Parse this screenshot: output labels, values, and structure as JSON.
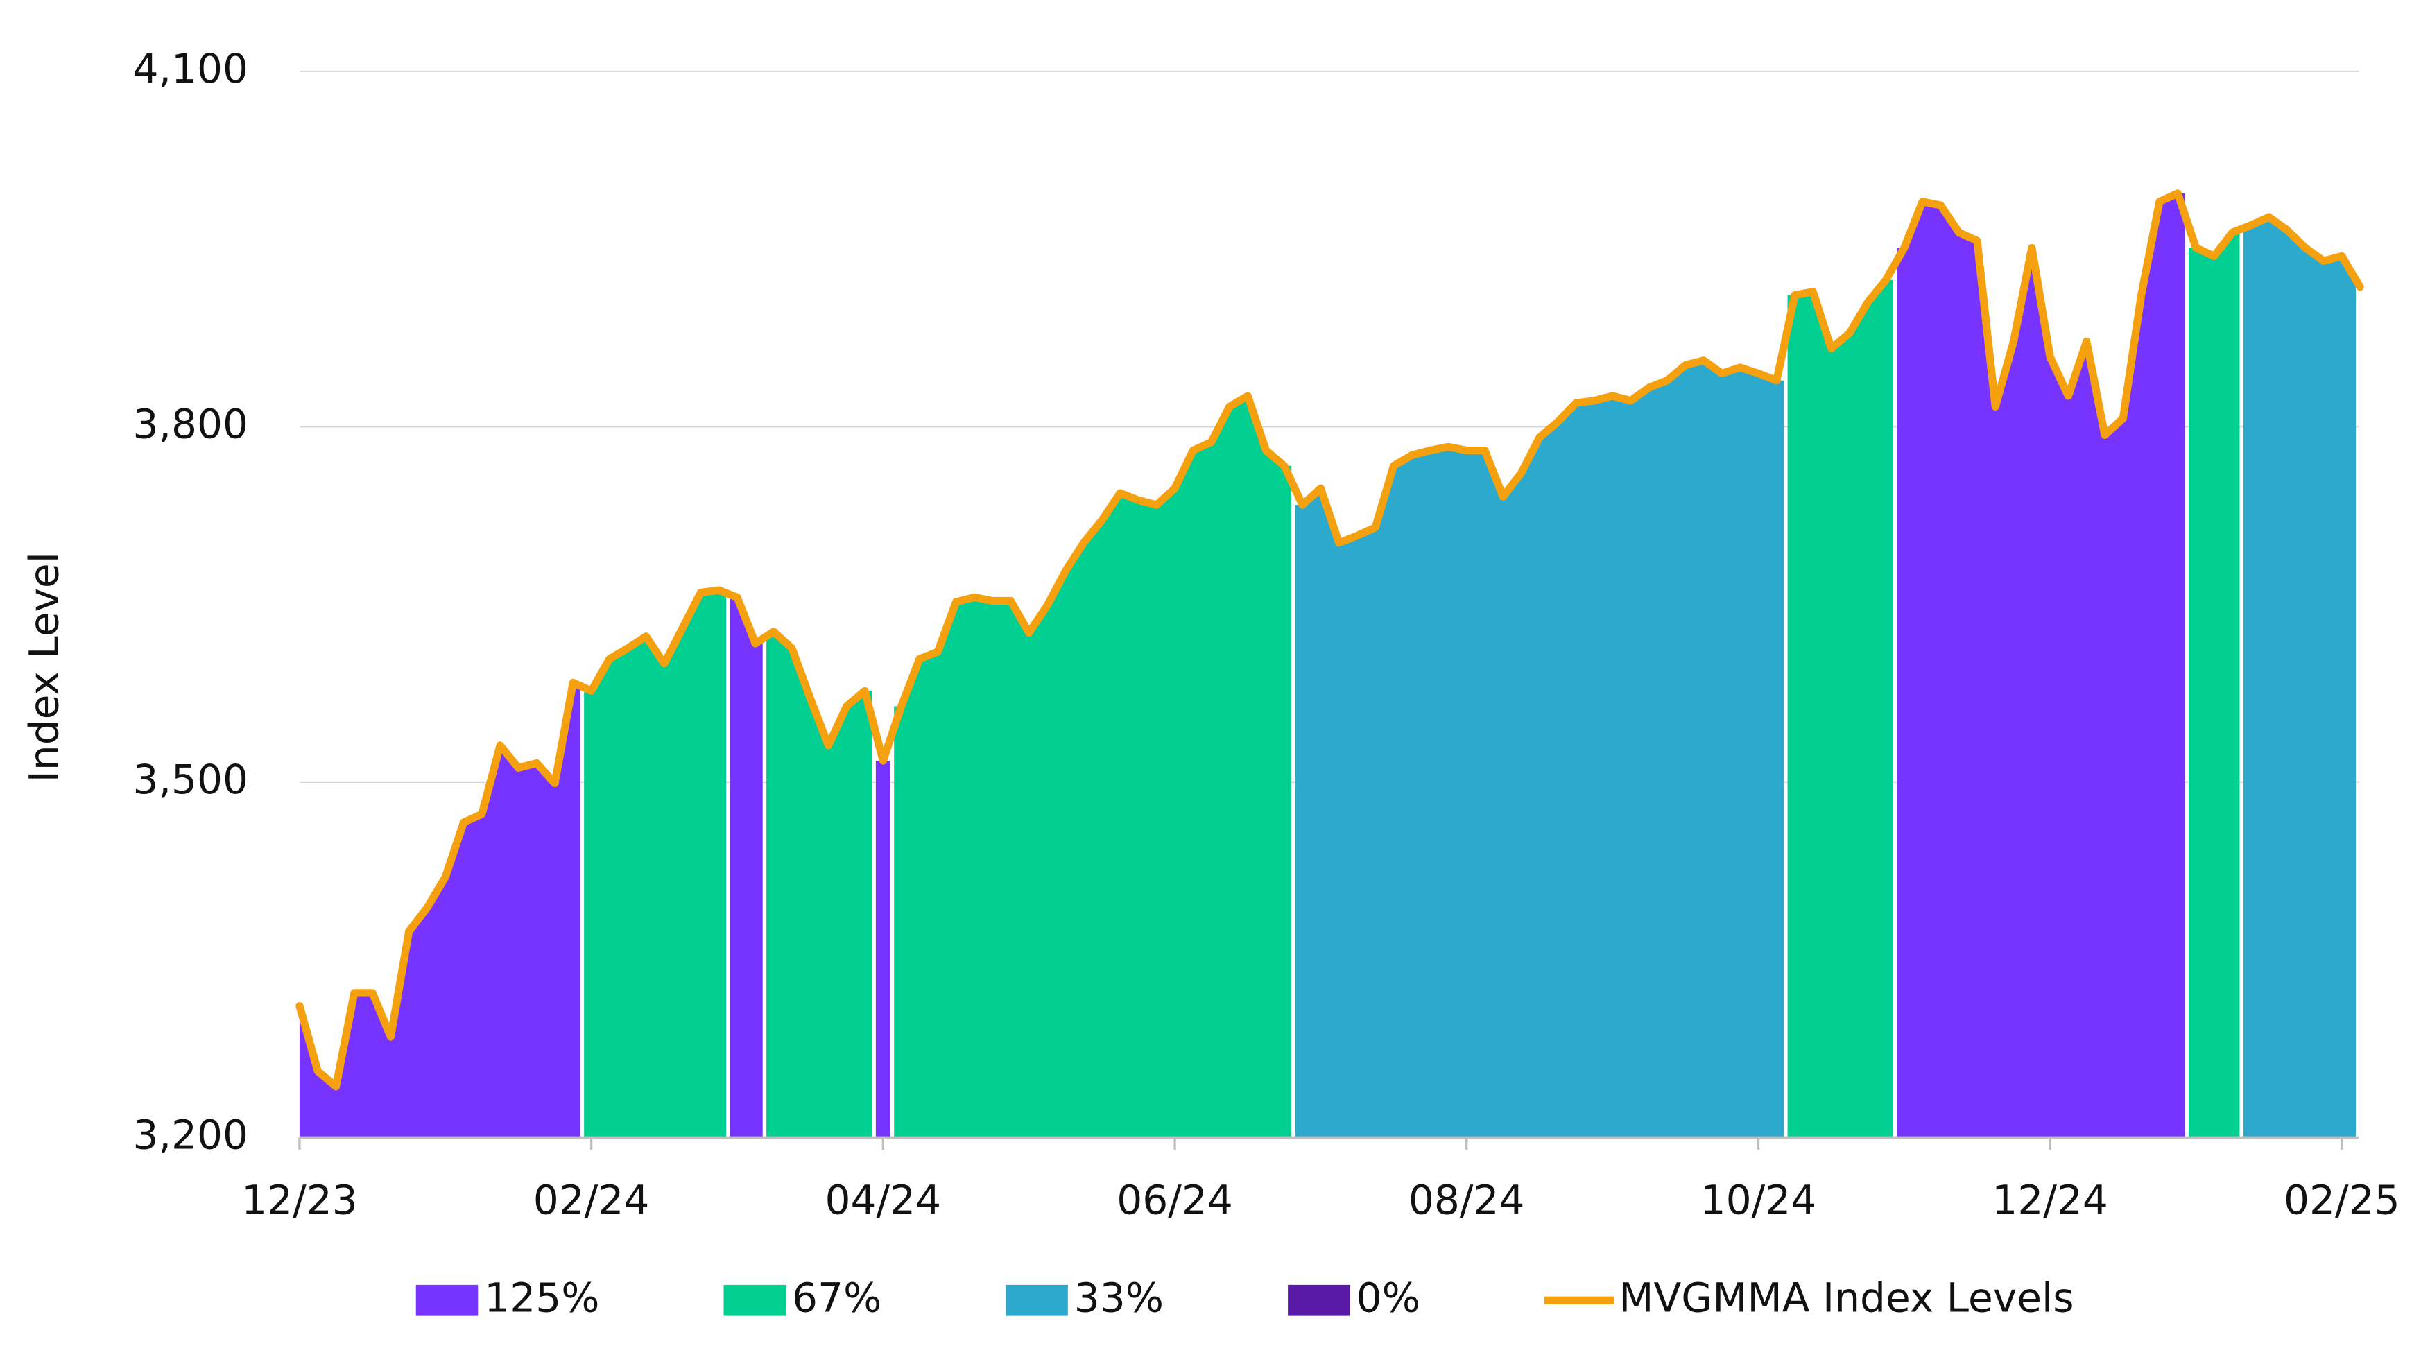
{
  "chart_data": {
    "type": "area",
    "y_label": "Index Level",
    "categories": [
      "12/23",
      null,
      null,
      null,
      null,
      null,
      null,
      null,
      null,
      null,
      null,
      null,
      null,
      null,
      null,
      null,
      "02/24",
      null,
      null,
      null,
      null,
      null,
      null,
      null,
      null,
      null,
      null,
      null,
      null,
      null,
      null,
      null,
      "04/24",
      null,
      null,
      null,
      null,
      null,
      null,
      null,
      null,
      null,
      null,
      null,
      null,
      null,
      null,
      null,
      "06/24",
      null,
      null,
      null,
      null,
      null,
      null,
      null,
      null,
      null,
      null,
      null,
      null,
      null,
      null,
      null,
      "08/24",
      null,
      null,
      null,
      null,
      null,
      null,
      null,
      null,
      null,
      null,
      null,
      null,
      null,
      null,
      null,
      "10/24",
      null,
      null,
      null,
      null,
      null,
      null,
      null,
      null,
      null,
      null,
      null,
      null,
      null,
      null,
      null,
      "12/24",
      null,
      null,
      null,
      null,
      null,
      null,
      null,
      null,
      null,
      null,
      null,
      null,
      null,
      null,
      null,
      "02/25",
      null
    ],
    "ylim": [
      3200,
      4100
    ],
    "yticks": [
      {
        "value": 3200,
        "label": "3,200"
      },
      {
        "value": 3500,
        "label": "3,500"
      },
      {
        "value": 3800,
        "label": "3,800"
      },
      {
        "value": 4100,
        "label": "4,100"
      }
    ],
    "grid": true,
    "legend": "bottom",
    "series": [
      {
        "name": "125%",
        "color": "#7733ff",
        "type": "area",
        "values": [
          3311,
          3256,
          3243,
          3322,
          3322,
          3285,
          3374,
          3394,
          3420,
          3466,
          3473,
          3531,
          3512,
          3516,
          3499,
          3584,
          null,
          null,
          null,
          null,
          null,
          null,
          null,
          null,
          3656,
          3617,
          null,
          null,
          null,
          null,
          null,
          null,
          3518,
          null,
          null,
          null,
          null,
          null,
          null,
          null,
          null,
          null,
          null,
          null,
          null,
          null,
          null,
          null,
          null,
          null,
          null,
          null,
          null,
          null,
          null,
          null,
          null,
          null,
          null,
          null,
          null,
          null,
          null,
          null,
          null,
          null,
          null,
          null,
          null,
          null,
          null,
          null,
          null,
          null,
          null,
          null,
          null,
          null,
          null,
          null,
          null,
          null,
          null,
          null,
          null,
          null,
          null,
          null,
          3951,
          3990,
          3987,
          3964,
          3957,
          3817,
          3872,
          3951,
          3859,
          3826,
          3872,
          3793,
          3807,
          3911,
          3990,
          3997,
          null,
          null,
          null,
          null,
          null,
          null,
          null,
          null,
          null,
          null
        ]
      },
      {
        "name": "67%",
        "color": "#00cf91",
        "type": "area",
        "values": [
          null,
          null,
          null,
          null,
          null,
          null,
          null,
          null,
          null,
          null,
          null,
          null,
          null,
          null,
          null,
          null,
          3577,
          3604,
          3613,
          3623,
          3600,
          3630,
          3660,
          3662,
          null,
          null,
          3627,
          3613,
          3571,
          3531,
          3564,
          3577,
          null,
          3564,
          3604,
          3610,
          3652,
          3656,
          3653,
          3653,
          3626,
          3649,
          3678,
          3702,
          3721,
          3744,
          3738,
          3734,
          3748,
          3780,
          3787,
          3817,
          3826,
          3780,
          3767,
          null,
          null,
          null,
          null,
          null,
          null,
          null,
          null,
          null,
          null,
          null,
          null,
          null,
          null,
          null,
          null,
          null,
          null,
          null,
          null,
          null,
          null,
          null,
          null,
          null,
          null,
          null,
          3911,
          3914,
          3866,
          3879,
          3905,
          3924,
          null,
          null,
          null,
          null,
          null,
          null,
          null,
          null,
          null,
          null,
          null,
          null,
          null,
          null,
          null,
          null,
          3951,
          3944,
          3964,
          null,
          null,
          null,
          null,
          null,
          null,
          null
        ]
      },
      {
        "name": "33%",
        "color": "#2ca9cc",
        "type": "area",
        "values": [
          null,
          null,
          null,
          null,
          null,
          null,
          null,
          null,
          null,
          null,
          null,
          null,
          null,
          null,
          null,
          null,
          null,
          null,
          null,
          null,
          null,
          null,
          null,
          null,
          null,
          null,
          null,
          null,
          null,
          null,
          null,
          null,
          null,
          null,
          null,
          null,
          null,
          null,
          null,
          null,
          null,
          null,
          null,
          null,
          null,
          null,
          null,
          null,
          null,
          null,
          null,
          null,
          null,
          null,
          null,
          3734,
          3748,
          3702,
          3708,
          3715,
          3767,
          3776,
          3780,
          3783,
          3780,
          3780,
          3741,
          3761,
          3791,
          3804,
          3820,
          3822,
          3826,
          3822,
          3833,
          3839,
          3852,
          3856,
          3845,
          3850,
          3845,
          3839,
          null,
          null,
          null,
          null,
          null,
          null,
          null,
          null,
          null,
          null,
          null,
          null,
          null,
          null,
          null,
          null,
          null,
          null,
          null,
          null,
          null,
          null,
          null,
          null,
          null,
          3970,
          3977,
          3966,
          3951,
          3940,
          3944,
          3918
        ]
      },
      {
        "name": "0%",
        "color": "#5a1aa8",
        "type": "area",
        "values": [
          null,
          null,
          null,
          null,
          null,
          null,
          null,
          null,
          null,
          null,
          null,
          null,
          null,
          null,
          null,
          null,
          null,
          null,
          null,
          null,
          null,
          null,
          null,
          null,
          null,
          null,
          null,
          null,
          null,
          null,
          null,
          null,
          null,
          null,
          null,
          null,
          null,
          null,
          null,
          null,
          null,
          null,
          null,
          null,
          null,
          null,
          null,
          null,
          null,
          null,
          null,
          null,
          null,
          null,
          null,
          null,
          null,
          null,
          null,
          null,
          null,
          null,
          null,
          null,
          null,
          null,
          null,
          null,
          null,
          null,
          null,
          null,
          null,
          null,
          null,
          null,
          null,
          null,
          null,
          null,
          null,
          null,
          null,
          null,
          null,
          null,
          null,
          null,
          null,
          null,
          null,
          null,
          null,
          null,
          null,
          null,
          null,
          null,
          null,
          null,
          null,
          null,
          null,
          null,
          null,
          null,
          null,
          null,
          null,
          null,
          null,
          null,
          null,
          null
        ]
      },
      {
        "name": "MVGMMA Index Levels",
        "color": "#f5a00f",
        "type": "line",
        "values": [
          3311,
          3256,
          3243,
          3322,
          3322,
          3285,
          3374,
          3394,
          3420,
          3466,
          3473,
          3531,
          3512,
          3516,
          3499,
          3584,
          3577,
          3604,
          3613,
          3623,
          3600,
          3630,
          3660,
          3662,
          3656,
          3617,
          3627,
          3613,
          3571,
          3531,
          3564,
          3577,
          3518,
          3564,
          3604,
          3610,
          3652,
          3656,
          3653,
          3653,
          3626,
          3649,
          3678,
          3702,
          3721,
          3744,
          3738,
          3734,
          3748,
          3780,
          3787,
          3817,
          3826,
          3780,
          3767,
          3734,
          3748,
          3702,
          3708,
          3715,
          3767,
          3776,
          3780,
          3783,
          3780,
          3780,
          3741,
          3761,
          3791,
          3804,
          3820,
          3822,
          3826,
          3822,
          3833,
          3839,
          3852,
          3856,
          3845,
          3850,
          3845,
          3839,
          3911,
          3914,
          3866,
          3879,
          3905,
          3924,
          3951,
          3990,
          3987,
          3964,
          3957,
          3817,
          3872,
          3951,
          3859,
          3826,
          3872,
          3793,
          3807,
          3911,
          3990,
          3997,
          3951,
          3944,
          3964,
          3970,
          3977,
          3966,
          3951,
          3940,
          3944,
          3918
        ]
      }
    ]
  }
}
